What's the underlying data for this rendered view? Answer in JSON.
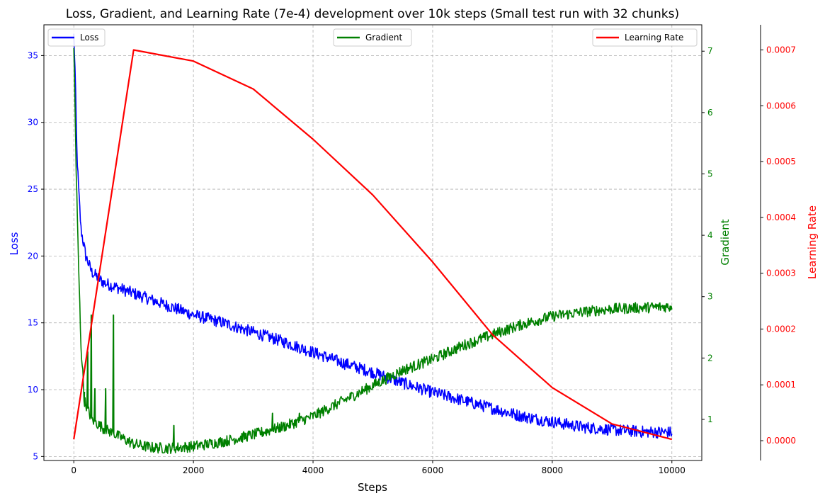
{
  "colors": {
    "loss": "#0000ff",
    "gradient": "#008000",
    "learning_rate": "#ff0000",
    "grid": "#b0b0b0",
    "axis": "#000000"
  },
  "chart_data": {
    "type": "line",
    "title": "Loss, Gradient, and Learning Rate (7e-4) development over 10k steps (Small test run with 32 chunks)",
    "xlabel": "Steps",
    "xlim": [
      -500,
      10500
    ],
    "xticks": [
      0,
      2000,
      4000,
      6000,
      8000,
      10000
    ],
    "xtick_labels": [
      "0",
      "2000",
      "4000",
      "6000",
      "8000",
      "10000"
    ],
    "grid": true,
    "axes": {
      "loss": {
        "label": "Loss",
        "side": "left",
        "ylim": [
          4.7,
          37.3
        ],
        "ticks": [
          5,
          10,
          15,
          20,
          25,
          30,
          35
        ],
        "tick_labels": [
          "5",
          "10",
          "15",
          "20",
          "25",
          "30",
          "35"
        ]
      },
      "gradient": {
        "label": "Gradient",
        "side": "right",
        "ylim": [
          0.33,
          7.43
        ],
        "ticks": [
          1,
          2,
          3,
          4,
          5,
          6,
          7
        ],
        "tick_labels": [
          "1",
          "2",
          "3",
          "4",
          "5",
          "6",
          "7"
        ]
      },
      "learning_rate": {
        "label": "Learning Rate",
        "side": "right-outer",
        "ylim": [
          -3.55e-05,
          0.000745
        ],
        "ticks": [
          0.0,
          0.0001,
          0.0002,
          0.0003,
          0.0004,
          0.0005,
          0.0006,
          0.0007
        ],
        "tick_labels": [
          "0.0000",
          "0.0001",
          "0.0002",
          "0.0003",
          "0.0004",
          "0.0005",
          "0.0006",
          "0.0007"
        ]
      }
    },
    "legends": [
      {
        "name": "Loss",
        "placement": "top-left"
      },
      {
        "name": "Gradient",
        "placement": "top-center"
      },
      {
        "name": "Learning Rate",
        "placement": "top-right"
      }
    ],
    "series": [
      {
        "name": "Loss",
        "axis": "loss",
        "noise": 0.45,
        "points": [
          [
            0,
            36.5
          ],
          [
            20,
            34.0
          ],
          [
            50,
            28.0
          ],
          [
            80,
            25.0
          ],
          [
            120,
            22.0
          ],
          [
            200,
            20.0
          ],
          [
            300,
            18.8
          ],
          [
            500,
            18.0
          ],
          [
            1000,
            17.2
          ],
          [
            1500,
            16.4
          ],
          [
            2000,
            15.6
          ],
          [
            2500,
            15.0
          ],
          [
            3000,
            14.3
          ],
          [
            3500,
            13.6
          ],
          [
            4000,
            12.8
          ],
          [
            4500,
            12.0
          ],
          [
            5000,
            11.3
          ],
          [
            5500,
            10.5
          ],
          [
            6000,
            9.8
          ],
          [
            6500,
            9.2
          ],
          [
            7000,
            8.6
          ],
          [
            7500,
            8.0
          ],
          [
            8000,
            7.6
          ],
          [
            8500,
            7.2
          ],
          [
            9000,
            7.0
          ],
          [
            9500,
            6.85
          ],
          [
            10000,
            6.8
          ]
        ]
      },
      {
        "name": "Gradient",
        "axis": "gradient",
        "noise": 0.09,
        "points": [
          [
            0,
            7.0
          ],
          [
            15,
            6.4
          ],
          [
            40,
            5.0
          ],
          [
            80,
            3.5
          ],
          [
            120,
            2.2
          ],
          [
            180,
            1.3
          ],
          [
            300,
            1.0
          ],
          [
            500,
            0.85
          ],
          [
            800,
            0.7
          ],
          [
            1000,
            0.6
          ],
          [
            1300,
            0.54
          ],
          [
            1600,
            0.53
          ],
          [
            2000,
            0.56
          ],
          [
            2500,
            0.64
          ],
          [
            3000,
            0.75
          ],
          [
            3500,
            0.88
          ],
          [
            4000,
            1.05
          ],
          [
            4500,
            1.3
          ],
          [
            5000,
            1.55
          ],
          [
            5500,
            1.8
          ],
          [
            6000,
            1.98
          ],
          [
            6500,
            2.2
          ],
          [
            7000,
            2.38
          ],
          [
            7500,
            2.55
          ],
          [
            8000,
            2.68
          ],
          [
            8500,
            2.75
          ],
          [
            9000,
            2.8
          ],
          [
            9500,
            2.82
          ],
          [
            10000,
            2.84
          ]
        ],
        "spikes": [
          [
            170,
            1.3
          ],
          [
            230,
            2.1
          ],
          [
            290,
            2.7
          ],
          [
            350,
            1.5
          ],
          [
            530,
            1.5
          ],
          [
            660,
            2.7
          ],
          [
            1670,
            0.9
          ],
          [
            3320,
            1.1
          ],
          [
            3770,
            1.1
          ]
        ]
      },
      {
        "name": "Learning Rate",
        "axis": "learning_rate",
        "points": [
          [
            0,
            2.3e-06
          ],
          [
            1000,
            0.0007
          ],
          [
            2000,
            0.00068
          ],
          [
            3000,
            0.00063
          ],
          [
            4000,
            0.00054
          ],
          [
            5000,
            0.00044
          ],
          [
            6000,
            0.00032
          ],
          [
            7000,
            0.00019
          ],
          [
            8000,
            9.5e-05
          ],
          [
            9000,
            3e-05
          ],
          [
            10000,
            2.3e-06
          ]
        ]
      }
    ]
  }
}
